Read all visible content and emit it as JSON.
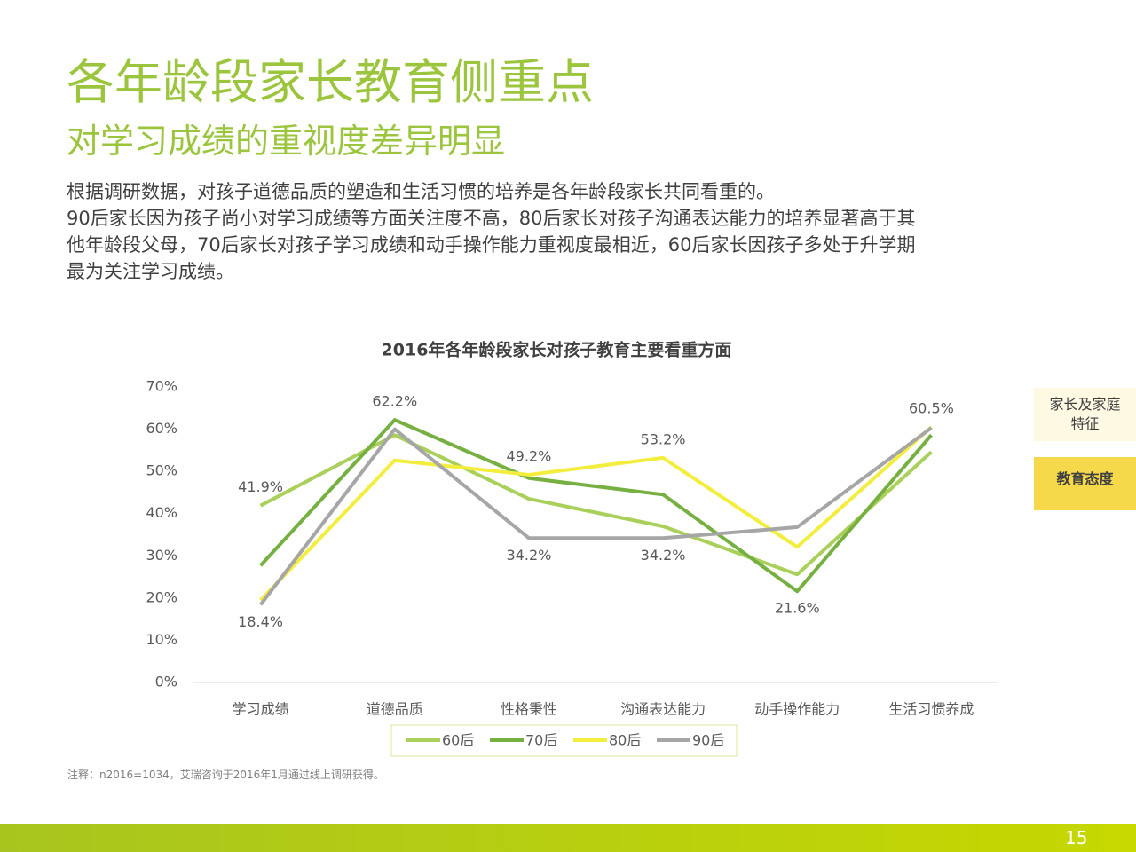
{
  "header": {
    "title": "各年龄段家长教育侧重点",
    "subtitle": "对学习成绩的重视度差异明显"
  },
  "body": {
    "lines": [
      "根据调研数据，对孩子道德品质的塑造和生活习惯的培养是各年龄段家长共同看重的。",
      "90后家长因为孩子尚小对学习成绩等方面关注度不高，80后家长对孩子沟通表达能力的培养显著高于其",
      "他年龄段父母，70后家长对孩子学习成绩和动手操作能力重视度最相近，60后家长因孩子多处于升学期",
      "最为关注学习成绩。"
    ]
  },
  "side_tabs": [
    "家长及家庭特征",
    "教育态度"
  ],
  "note": "注释：n2016=1034，艾瑞咨询于2016年1月通过线上调研获得。",
  "page_number": "15",
  "chart_data": {
    "type": "line",
    "title": "2016年各年龄段家长对孩子教育主要看重方面",
    "categories": [
      "学习成绩",
      "道德品质",
      "性格秉性",
      "沟通表达能力",
      "动手操作能力",
      "生活习惯养成"
    ],
    "ylim": [
      0,
      70
    ],
    "yticks": [
      {
        "value": 0,
        "label": "0%"
      },
      {
        "value": 10,
        "label": "10%"
      },
      {
        "value": 20,
        "label": "20%"
      },
      {
        "value": 30,
        "label": "30%"
      },
      {
        "value": 40,
        "label": "40%"
      },
      {
        "value": 50,
        "label": "50%"
      },
      {
        "value": 60,
        "label": "60%"
      },
      {
        "value": 70,
        "label": "70%"
      }
    ],
    "legend": "bottom",
    "series": [
      {
        "name": "60后",
        "color": "#a9d05a",
        "values": [
          41.9,
          58.6,
          43.5,
          37,
          25.6,
          54.6
        ],
        "value_labels": [
          "41.9%",
          null,
          null,
          null,
          null,
          null
        ]
      },
      {
        "name": "70后",
        "color": "#76b041",
        "values": [
          27.7,
          62.2,
          48.4,
          44.5,
          21.6,
          58.6
        ],
        "value_labels": [
          null,
          "62.2%",
          null,
          null,
          "21.6%",
          null
        ]
      },
      {
        "name": "80后",
        "color": "#f3ee3e",
        "values": [
          19.5,
          52.6,
          49.2,
          53.2,
          32.1,
          60.5
        ],
        "value_labels": [
          null,
          null,
          "49.2%",
          "53.2%",
          null,
          "60.5%"
        ]
      },
      {
        "name": "90后",
        "color": "#a6a6a6",
        "values": [
          18.4,
          60,
          34.2,
          34.2,
          36.8,
          60.3
        ],
        "value_labels": [
          "18.4%",
          null,
          "34.2%",
          "34.2%",
          null,
          null
        ]
      }
    ]
  }
}
